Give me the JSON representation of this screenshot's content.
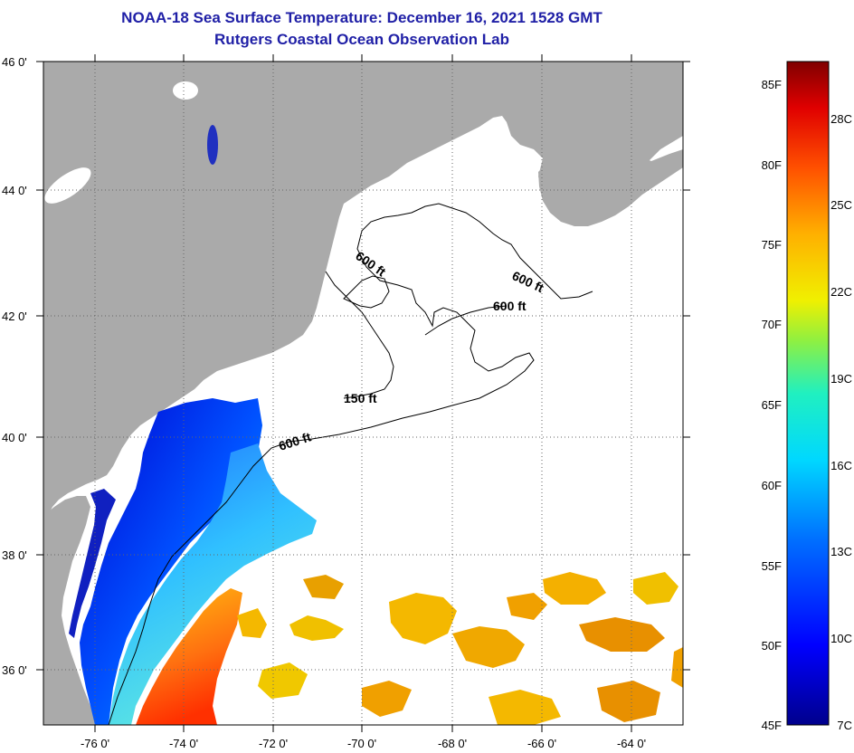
{
  "header": {
    "title_line1": "NOAA-18 Sea Surface Temperature:  December 16, 2021 1528 GMT",
    "title_line2": "Rutgers Coastal Ocean Observation Lab"
  },
  "map": {
    "lat_labels": [
      "46 0'",
      "44 0'",
      "42 0'",
      "40 0'",
      "38 0'",
      "36 0'"
    ],
    "lon_labels": [
      "-76 0'",
      "-74 0'",
      "-72 0'",
      "-70 0'",
      "-68 0'",
      "-66 0'",
      "-64 0'"
    ],
    "contours": [
      "600 ft",
      "600 ft",
      "600 ft",
      "150 ft",
      "600 ft"
    ],
    "colors": {
      "land": "#aaaaaa",
      "cloud": "#ffffff",
      "frame": "#000000"
    }
  },
  "colorbar": {
    "fahrenheit_labels": [
      "85F",
      "80F",
      "75F",
      "70F",
      "65F",
      "60F",
      "55F",
      "50F",
      "45F"
    ],
    "celsius_labels": [
      "28C",
      "25C",
      "22C",
      "19C",
      "16C",
      "13C",
      "10C",
      "7C"
    ]
  }
}
